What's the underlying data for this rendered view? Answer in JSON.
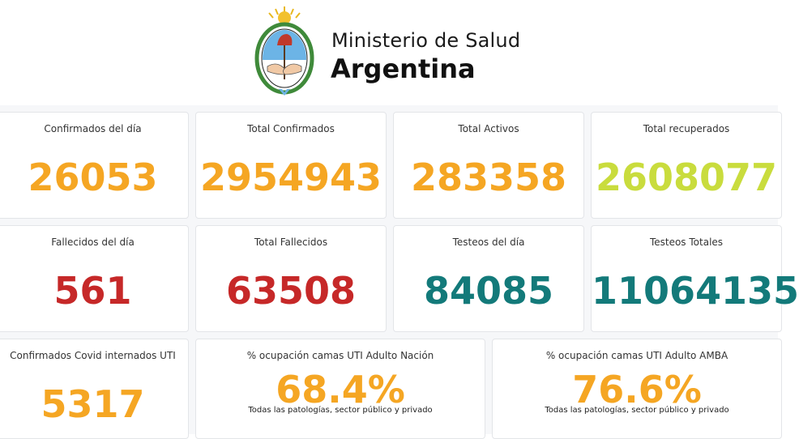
{
  "header": {
    "line1": "Ministerio de Salud",
    "line2": "Argentina",
    "emblem_icon": "argentina-coat-of-arms-icon"
  },
  "colors": {
    "orange": "#f5a623",
    "lime": "#c9dc3d",
    "red": "#c62828",
    "teal": "#137a7a"
  },
  "cards": {
    "confirmados_dia": {
      "label": "Confirmados del día",
      "value": "26053"
    },
    "total_confirmados": {
      "label": "Total Confirmados",
      "value": "2954943"
    },
    "total_activos": {
      "label": "Total Activos",
      "value": "283358"
    },
    "total_recuperados": {
      "label": "Total recuperados",
      "value": "2608077"
    },
    "fallecidos_dia": {
      "label": "Fallecidos del día",
      "value": "561"
    },
    "total_fallecidos": {
      "label": "Total Fallecidos",
      "value": "63508"
    },
    "testeos_dia": {
      "label": "Testeos del día",
      "value": "84085"
    },
    "testeos_totales": {
      "label": "Testeos Totales",
      "value": "11064135"
    },
    "internados_uti": {
      "label": "Confirmados Covid internados UTI",
      "value": "5317"
    },
    "ocupacion_nacion": {
      "label": "% ocupación camas UTI Adulto Nación",
      "value": "68.4%",
      "note": "Todas las patologías, sector público y privado"
    },
    "ocupacion_amba": {
      "label": "% ocupación camas UTI Adulto AMBA",
      "value": "76.6%",
      "note": "Todas las patologías, sector público y privado"
    }
  }
}
